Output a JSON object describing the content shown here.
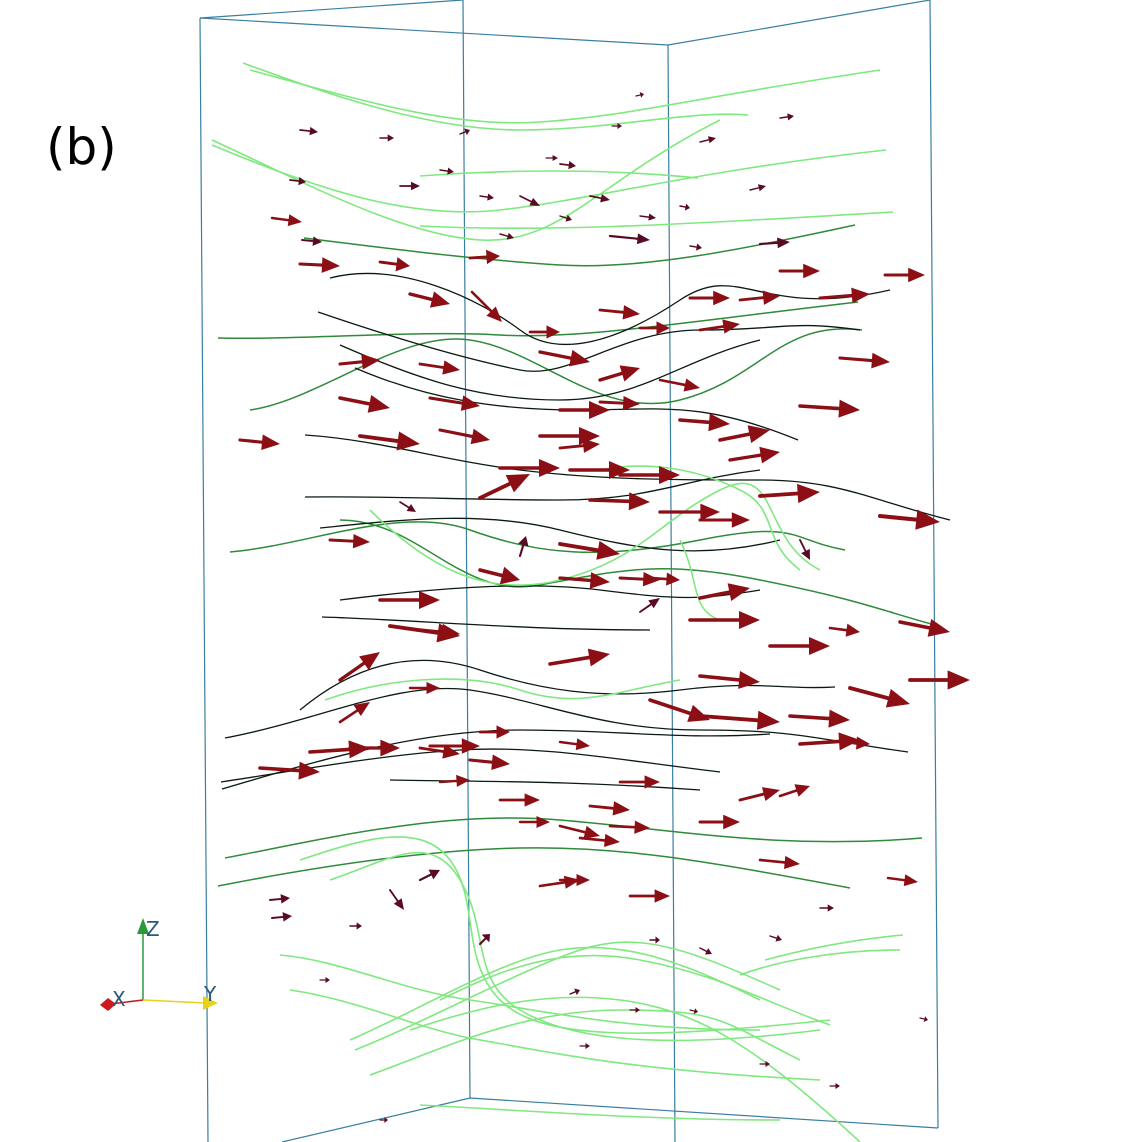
{
  "figure": {
    "panel_label": "(b)",
    "colors": {
      "box_edge": "#3a7fa0",
      "arrow": "#8b0f14",
      "arrow_small": "#5a0b24",
      "line_light": "#7fe87f",
      "line_mid": "#2f8a3a",
      "line_dark": "#0b1a10"
    }
  },
  "axes_triad": {
    "labels": {
      "z": "Z",
      "x": "X",
      "y": "Y"
    },
    "colors": {
      "z": "#2b9a3a",
      "x": "#cc1a1a",
      "y": "#e6d21a",
      "text": "#2a5a7a"
    }
  }
}
